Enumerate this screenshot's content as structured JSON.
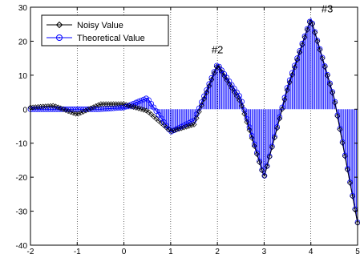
{
  "chart_data": {
    "type": "line",
    "title": "",
    "xlabel": "",
    "ylabel": "",
    "xlim": [
      -2,
      5
    ],
    "ylim": [
      -40,
      30
    ],
    "x_ticks": [
      "-2",
      "-1",
      "0",
      "1",
      "2",
      "3",
      "4",
      "5"
    ],
    "y_ticks": [
      "30",
      "20",
      "10",
      "0",
      "-10",
      "-20",
      "-30",
      "-40"
    ],
    "x_tick_values": [
      -2,
      -1,
      0,
      1,
      2,
      3,
      4,
      5
    ],
    "y_tick_values": [
      30,
      20,
      10,
      0,
      -10,
      -20,
      -30,
      -40
    ],
    "grid": "vertical dotted",
    "legend_position": "top-left",
    "series": [
      {
        "name": "Noisy Value",
        "marker": "diamond",
        "color": "#000000",
        "x": [
          -2,
          -1.5,
          -1,
          -0.5,
          0,
          0.5,
          1,
          1.5,
          2,
          2.5,
          3,
          3.5,
          4,
          4.5,
          5
        ],
        "y": [
          0.5,
          1.0,
          -1.5,
          1.5,
          1.5,
          -0.5,
          -6.5,
          -4.5,
          13,
          2,
          -20,
          6,
          26.5,
          3,
          -33.5
        ]
      },
      {
        "name": "Theoretical Value",
        "marker": "circle",
        "color": "#0000ff",
        "x": [
          -2,
          -1.5,
          -1,
          -0.5,
          0,
          0.5,
          1,
          1.5,
          2,
          2.5,
          3,
          3.5,
          4,
          4.5,
          5
        ],
        "y": [
          0,
          0,
          0,
          0,
          0.5,
          3.3,
          -6.7,
          -3.3,
          13.3,
          3.3,
          -20,
          6.7,
          26.7,
          3.3,
          -33.3
        ]
      }
    ],
    "annotations": [
      {
        "text": "#2",
        "x": 2,
        "y": 16.5
      },
      {
        "text": "#3",
        "x": 4.35,
        "y": 28.5
      }
    ]
  }
}
